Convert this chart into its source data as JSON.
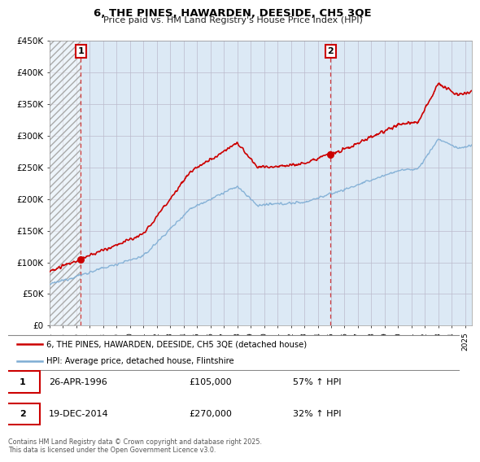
{
  "title": "6, THE PINES, HAWARDEN, DEESIDE, CH5 3QE",
  "subtitle": "Price paid vs. HM Land Registry's House Price Index (HPI)",
  "ylim": [
    0,
    450000
  ],
  "year_start": 1994,
  "year_end": 2025,
  "sale1_date": "26-APR-1996",
  "sale1_price": 105000,
  "sale1_hpi": "57% ↑ HPI",
  "sale1_x": 1996.32,
  "sale2_date": "19-DEC-2014",
  "sale2_price": 270000,
  "sale2_hpi": "32% ↑ HPI",
  "sale2_x": 2014.96,
  "property_color": "#cc0000",
  "hpi_color": "#7eadd4",
  "legend_property": "6, THE PINES, HAWARDEN, DEESIDE, CH5 3QE (detached house)",
  "legend_hpi": "HPI: Average price, detached house, Flintshire",
  "footer": "Contains HM Land Registry data © Crown copyright and database right 2025.\nThis data is licensed under the Open Government Licence v3.0.",
  "background_color": "#dce9f5",
  "plot_bg": "#ffffff"
}
